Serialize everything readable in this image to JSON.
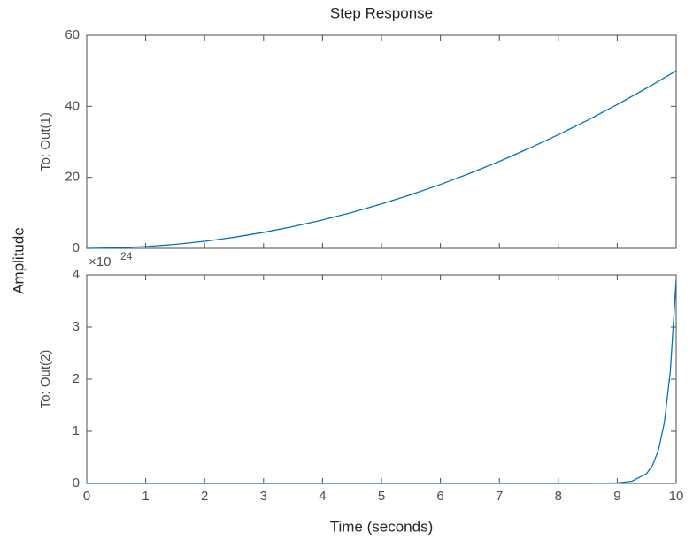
{
  "title": "Step Response",
  "ylabel": "Amplitude",
  "xlabel": "Time (seconds)",
  "chart_data": [
    {
      "type": "line",
      "ylabel": "To: Out(1)",
      "x": [
        0,
        0.5,
        1,
        1.5,
        2,
        2.5,
        3,
        3.5,
        4,
        4.5,
        5,
        5.5,
        6,
        6.5,
        7,
        7.5,
        8,
        8.5,
        9,
        9.5,
        10
      ],
      "series": [
        {
          "color": "#0072bd",
          "values": [
            0,
            0.125,
            0.5,
            1.125,
            2,
            3.125,
            4.5,
            6.125,
            8,
            10.125,
            12.5,
            15.125,
            18,
            21.125,
            24.5,
            28.125,
            32,
            36.125,
            40.5,
            45.125,
            50
          ]
        }
      ],
      "xlim": [
        0,
        10
      ],
      "xticks": [
        0,
        1,
        2,
        3,
        4,
        5,
        6,
        7,
        8,
        9,
        10
      ],
      "ylim": [
        0,
        60
      ],
      "yticks": [
        0,
        20,
        40,
        60
      ]
    },
    {
      "type": "line",
      "ylabel": "To: Out(2)",
      "exponent_base": "×10",
      "exponent": "24",
      "x": [
        0,
        1,
        2,
        3,
        4,
        5,
        6,
        7,
        8,
        8.5,
        9,
        9.25,
        9.5,
        9.6,
        9.7,
        9.8,
        9.9,
        10
      ],
      "series": [
        {
          "color": "#0072bd",
          "values": [
            0,
            0,
            0,
            0,
            0,
            0,
            0,
            0,
            0,
            0,
            0.01,
            0.043,
            0.19,
            0.35,
            0.64,
            1.17,
            2.14,
            3.9
          ]
        }
      ],
      "xlim": [
        0,
        10
      ],
      "xticks": [
        0,
        1,
        2,
        3,
        4,
        5,
        6,
        7,
        8,
        9,
        10
      ],
      "ylim": [
        0,
        4
      ],
      "yticks": [
        0,
        1,
        2,
        3,
        4
      ]
    }
  ]
}
